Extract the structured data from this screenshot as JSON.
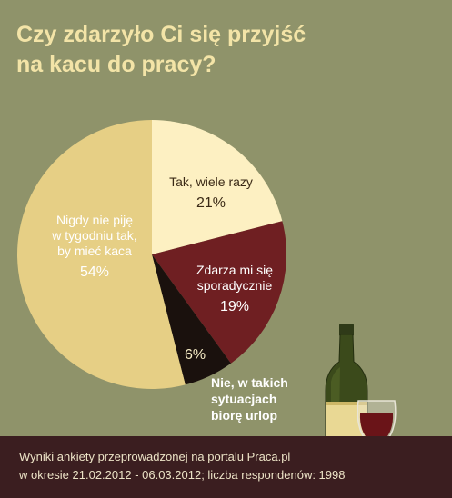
{
  "title": {
    "line1": "Czy zdarzyło Ci się przyjść",
    "line2": "na kacu do pracy?"
  },
  "chart_data": {
    "type": "pie",
    "title": "Czy zdarzyło Ci się przyjść na kacu do pracy?",
    "slices": [
      {
        "label": "Tak, wiele razy",
        "value": 21,
        "value_label": "21%",
        "color": "#fdf0c2"
      },
      {
        "label": "Zdarza mi się sporadycznie",
        "value": 19,
        "value_label": "19%",
        "color": "#6f1f22"
      },
      {
        "label": "Nie, w takich sytuacjach biorę urlop",
        "value": 6,
        "value_label": "6%",
        "color": "#1a110d"
      },
      {
        "label": "Nigdy nie piję w tygodniu tak, by mieć kaca",
        "value": 54,
        "value_label": "54%",
        "color": "#e6cf85"
      }
    ]
  },
  "labels": {
    "many": {
      "line1": "Tak, wiele razy",
      "pct": "21%"
    },
    "sporadic": {
      "line1": "Zdarza mi się",
      "line2": "sporadycznie",
      "pct": "19%"
    },
    "leave": {
      "pct": "6%",
      "line1": "Nie, w takich",
      "line2": "sytuacjach",
      "line3": "biorę urlop"
    },
    "never": {
      "line1": "Nigdy nie piję",
      "line2": "w tygodniu tak,",
      "line3": "by mieć kaca",
      "pct": "54%"
    }
  },
  "footer": {
    "line1": "Wyniki ankiety przeprowadzonej na portalu Praca.pl",
    "line2": "w okresie 21.02.2012 - 06.03.2012; liczba respondenów: 1998"
  },
  "colors": {
    "background": "#8f936a",
    "title": "#f3e4a7",
    "footer_bg": "#3b1e20"
  }
}
